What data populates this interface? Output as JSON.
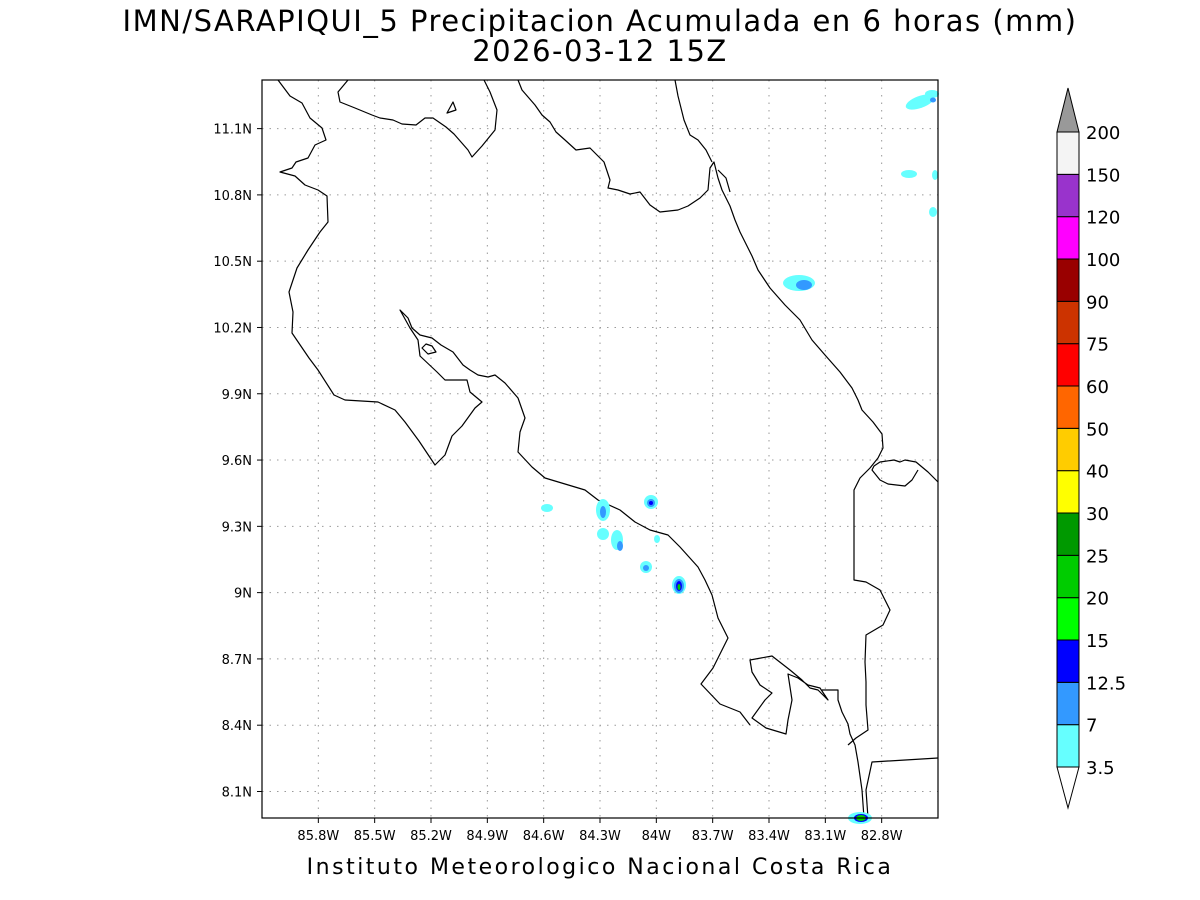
{
  "title": "IMN/SARAPIQUI_5 Precipitacion Acumulada en 6 horas (mm)",
  "subtitle": "2026-03-12 15Z",
  "footer": "Instituto Meteorologico Nacional Costa Rica",
  "map": {
    "lon_range": [
      -86.1,
      -82.5
    ],
    "lat_range": [
      7.98,
      11.32
    ],
    "lat_ticks": [
      {
        "v": 11.1,
        "label": "11.1N"
      },
      {
        "v": 10.8,
        "label": "10.8N"
      },
      {
        "v": 10.5,
        "label": "10.5N"
      },
      {
        "v": 10.2,
        "label": "10.2N"
      },
      {
        "v": 9.9,
        "label": "9.9N"
      },
      {
        "v": 9.6,
        "label": "9.6N"
      },
      {
        "v": 9.3,
        "label": "9.3N"
      },
      {
        "v": 9.0,
        "label": "9N"
      },
      {
        "v": 8.7,
        "label": "8.7N"
      },
      {
        "v": 8.4,
        "label": "8.4N"
      },
      {
        "v": 8.1,
        "label": "8.1N"
      }
    ],
    "lon_ticks": [
      {
        "v": -85.8,
        "label": "85.8W"
      },
      {
        "v": -85.5,
        "label": "85.5W"
      },
      {
        "v": -85.2,
        "label": "85.2W"
      },
      {
        "v": -84.9,
        "label": "84.9W"
      },
      {
        "v": -84.6,
        "label": "84.6W"
      },
      {
        "v": -84.3,
        "label": "84.3W"
      },
      {
        "v": -84.0,
        "label": "84W"
      },
      {
        "v": -83.7,
        "label": "83.7W"
      },
      {
        "v": -83.4,
        "label": "83.4W"
      },
      {
        "v": -83.1,
        "label": "83.1W"
      },
      {
        "v": -82.8,
        "label": "82.8W"
      }
    ]
  },
  "colorbar": {
    "levels": [
      "3.5",
      "7",
      "12.5",
      "15",
      "20",
      "25",
      "30",
      "40",
      "50",
      "60",
      "75",
      "90",
      "100",
      "120",
      "150",
      "200"
    ],
    "colors": [
      "#ffffff",
      "#66ffff",
      "#3399ff",
      "#0000ff",
      "#00ff00",
      "#00cc00",
      "#009900",
      "#ffff00",
      "#ffcc00",
      "#ff6600",
      "#ff0000",
      "#cc3300",
      "#990000",
      "#ff00ff",
      "#9933cc",
      "#f4f4f4",
      "#999999"
    ]
  }
}
